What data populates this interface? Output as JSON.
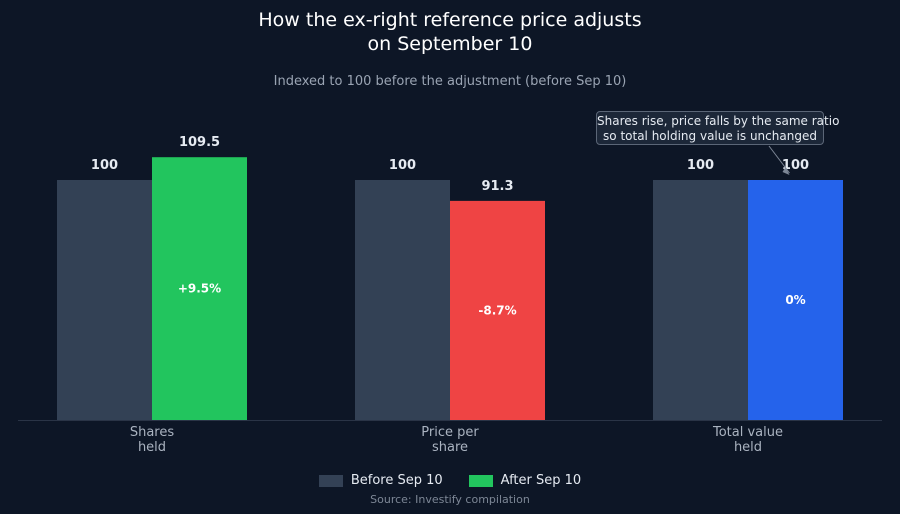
{
  "title_lines": [
    "How the ex-right reference price adjusts",
    "on September 10"
  ],
  "subtitle": "Indexed to 100 before the adjustment (before Sep 10)",
  "source": "Source: Investify compilation",
  "annotation": {
    "lines": [
      "Shares rise, price falls by the same ratio",
      "so total holding value is unchanged"
    ],
    "target_category": 2
  },
  "legend": [
    {
      "label": "Before Sep 10",
      "color": "#334155"
    },
    {
      "label": "After Sep 10",
      "color": "#22c55e"
    }
  ],
  "chart_data": {
    "type": "bar",
    "title": "How the ex-right reference price adjusts on September 10",
    "subtitle": "Indexed to 100 before the adjustment (before Sep 10)",
    "categories": [
      [
        "Shares",
        "held"
      ],
      [
        "Price per",
        "share"
      ],
      [
        "Total value",
        "held"
      ]
    ],
    "series": [
      {
        "name": "Before Sep 10",
        "values": [
          100,
          100,
          100
        ],
        "color": "#334155"
      },
      {
        "name": "After Sep 10",
        "values": [
          109.5,
          91.3,
          100
        ],
        "colors": [
          "#22c55e",
          "#ef4444",
          "#2563eb"
        ]
      }
    ],
    "value_labels": {
      "before": [
        "100",
        "100",
        "100"
      ],
      "after": [
        "109.5",
        "91.3",
        "100"
      ]
    },
    "change_labels": [
      "+9.5%",
      "-8.7%",
      "0%"
    ],
    "ylim": [
      0,
      120
    ],
    "grid": false,
    "legend_position": "bottom"
  }
}
